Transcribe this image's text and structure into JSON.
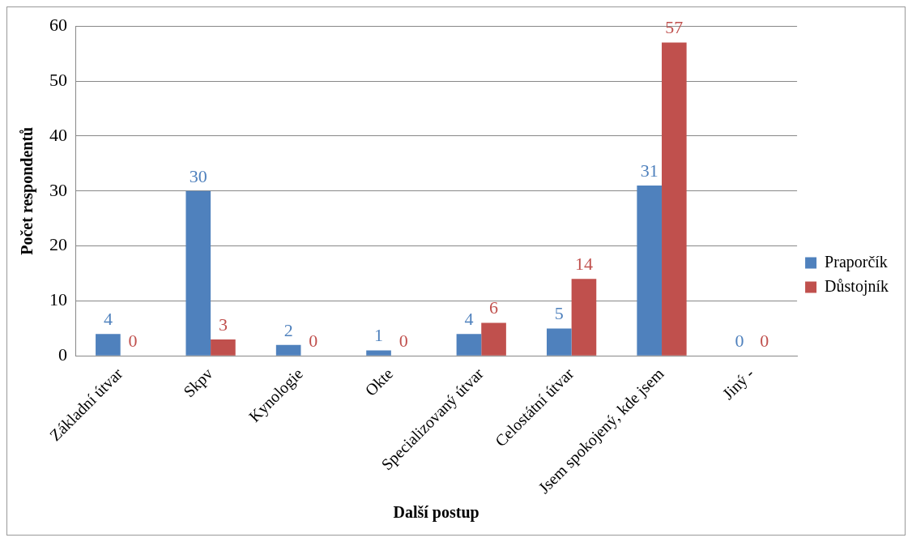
{
  "chart_data": {
    "type": "bar",
    "xlabel": "Další postup",
    "ylabel": "Počet respondentů",
    "categories": [
      "Základní útvar",
      "Skpv",
      "Kynologie",
      "Okte",
      "Specializovaný útvar",
      "Celostátní útvar",
      "Jsem spokojený, kde jsem",
      "Jiný -"
    ],
    "series": [
      {
        "name": "Praporčík",
        "color": "#4f81bd",
        "values": [
          4,
          30,
          2,
          1,
          4,
          5,
          31,
          0
        ]
      },
      {
        "name": "Důstojník",
        "color": "#c0504d",
        "values": [
          0,
          3,
          0,
          0,
          6,
          14,
          57,
          0
        ]
      }
    ],
    "ylim": [
      0,
      60
    ],
    "yticks": [
      0,
      10,
      20,
      30,
      40,
      50,
      60
    ],
    "grid": "y",
    "legend": "right",
    "data_labels": true
  }
}
